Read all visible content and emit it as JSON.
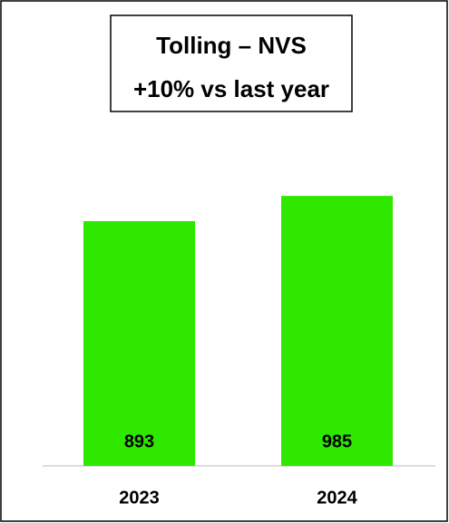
{
  "chart_data": {
    "type": "bar",
    "title": "Tolling – NVS",
    "subtitle": "+10% vs last year",
    "categories": [
      "2023",
      "2024"
    ],
    "values": [
      893,
      985
    ],
    "color": "#2ee800"
  }
}
